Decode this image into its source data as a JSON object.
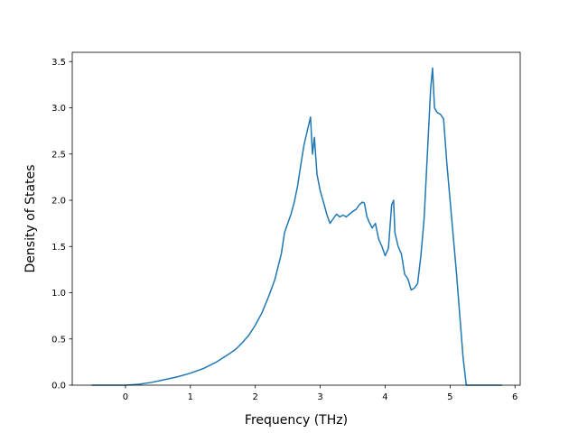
{
  "chart_data": {
    "type": "line",
    "title": "",
    "xlabel": "Frequency (THz)",
    "ylabel": "Density of States",
    "xlim": [
      -0.82,
      6.08
    ],
    "ylim": [
      0,
      3.6
    ],
    "xticks": [
      0,
      1,
      2,
      3,
      4,
      5,
      6
    ],
    "xtick_labels": [
      "0",
      "1",
      "2",
      "3",
      "4",
      "5",
      "6"
    ],
    "yticks": [
      0.0,
      0.5,
      1.0,
      1.5,
      2.0,
      2.5,
      3.0,
      3.5
    ],
    "ytick_labels": [
      "0.0",
      "0.5",
      "1.0",
      "1.5",
      "2.0",
      "2.5",
      "3.0",
      "3.5"
    ],
    "grid": false,
    "legend": false,
    "series": [
      {
        "color": "#1f77b4",
        "x": [
          -0.52,
          -0.2,
          0.0,
          0.2,
          0.4,
          0.6,
          0.8,
          1.0,
          1.2,
          1.4,
          1.6,
          1.7,
          1.8,
          1.9,
          2.0,
          2.1,
          2.2,
          2.3,
          2.4,
          2.45,
          2.5,
          2.55,
          2.6,
          2.65,
          2.7,
          2.75,
          2.8,
          2.85,
          2.88,
          2.91,
          2.95,
          3.0,
          3.05,
          3.1,
          3.15,
          3.2,
          3.25,
          3.3,
          3.35,
          3.4,
          3.45,
          3.5,
          3.55,
          3.6,
          3.65,
          3.68,
          3.72,
          3.75,
          3.8,
          3.85,
          3.9,
          3.95,
          4.0,
          4.05,
          4.1,
          4.13,
          4.15,
          4.2,
          4.25,
          4.3,
          4.35,
          4.4,
          4.45,
          4.5,
          4.55,
          4.6,
          4.65,
          4.7,
          4.73,
          4.76,
          4.8,
          4.85,
          4.9,
          4.95,
          5.0,
          5.05,
          5.1,
          5.15,
          5.2,
          5.25,
          5.27,
          5.3,
          5.8
        ],
        "y": [
          0.0,
          0.0,
          0.0,
          0.01,
          0.03,
          0.06,
          0.09,
          0.13,
          0.18,
          0.25,
          0.34,
          0.39,
          0.46,
          0.54,
          0.65,
          0.78,
          0.95,
          1.14,
          1.42,
          1.65,
          1.75,
          1.85,
          1.98,
          2.15,
          2.38,
          2.6,
          2.75,
          2.9,
          2.5,
          2.68,
          2.28,
          2.1,
          1.98,
          1.85,
          1.75,
          1.8,
          1.85,
          1.82,
          1.84,
          1.82,
          1.85,
          1.88,
          1.9,
          1.95,
          1.98,
          1.97,
          1.82,
          1.77,
          1.7,
          1.75,
          1.58,
          1.5,
          1.4,
          1.48,
          1.95,
          2.0,
          1.65,
          1.5,
          1.42,
          1.2,
          1.15,
          1.03,
          1.05,
          1.1,
          1.4,
          1.8,
          2.5,
          3.2,
          3.43,
          3.0,
          2.95,
          2.93,
          2.88,
          2.4,
          2.0,
          1.6,
          1.2,
          0.75,
          0.3,
          0.0,
          0.0,
          0.0,
          0.0
        ]
      }
    ]
  }
}
